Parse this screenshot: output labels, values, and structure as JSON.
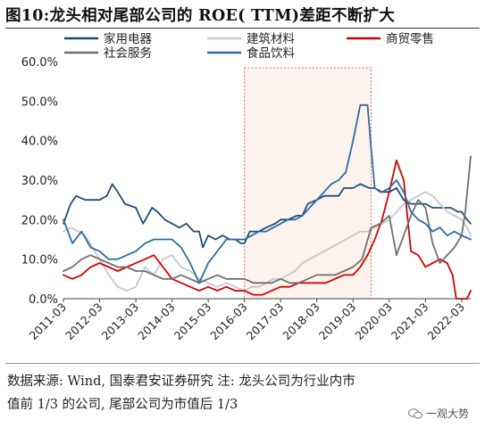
{
  "title": "图10:龙头相对尾部公司的 ROE( TTM)差距不断扩大",
  "note": {
    "line1": "数据来源: Wind, 国泰君安证券研究  注: 龙头公司为行业内市",
    "line2": "值前 1/3 的公司, 尾部公司为市值后 1/3"
  },
  "watermark": "一观大势",
  "chart_data": {
    "type": "line",
    "title": "图10:龙头相对尾部公司的 ROE( TTM)差距不断扩大",
    "xlabel": "",
    "ylabel": "",
    "x_ticks": [
      "2011-03",
      "2012-03",
      "2013-03",
      "2014-03",
      "2015-03",
      "2016-03",
      "2017-03",
      "2018-03",
      "2019-03",
      "2020-03",
      "2021-03",
      "2022-03"
    ],
    "x_range": [
      2011.0,
      2022.25
    ],
    "ylim": [
      0,
      60
    ],
    "y_ticks": [
      0,
      10,
      20,
      30,
      40,
      50,
      60
    ],
    "y_tick_labels": [
      "0.0%",
      "10.0%",
      "20.0%",
      "30.0%",
      "40.0%",
      "50.0%",
      "60.0%"
    ],
    "grid": false,
    "legend_position": "top",
    "highlight_region": {
      "x_start": 2016.0,
      "x_end": 2019.5,
      "color": "#fdf3ee",
      "border": "#e06666"
    },
    "series": [
      {
        "name": "家用电器",
        "color": "#1f4e79",
        "width": 1.8,
        "points": [
          [
            2011.0,
            19
          ],
          [
            2011.2,
            24
          ],
          [
            2011.35,
            26
          ],
          [
            2011.6,
            25
          ],
          [
            2012.0,
            25
          ],
          [
            2012.2,
            26
          ],
          [
            2012.35,
            29
          ],
          [
            2012.5,
            27
          ],
          [
            2012.7,
            24
          ],
          [
            2013.0,
            23
          ],
          [
            2013.2,
            19
          ],
          [
            2013.45,
            23
          ],
          [
            2013.6,
            22
          ],
          [
            2013.8,
            20
          ],
          [
            2014.0,
            19
          ],
          [
            2014.2,
            18
          ],
          [
            2014.4,
            19
          ],
          [
            2014.6,
            17
          ],
          [
            2014.75,
            17
          ],
          [
            2014.85,
            13
          ],
          [
            2015.0,
            16
          ],
          [
            2015.2,
            15
          ],
          [
            2015.4,
            16
          ],
          [
            2015.6,
            15
          ],
          [
            2015.75,
            15
          ],
          [
            2015.9,
            14
          ],
          [
            2016.0,
            14
          ],
          [
            2016.15,
            17
          ],
          [
            2016.4,
            17
          ],
          [
            2016.6,
            18
          ],
          [
            2016.85,
            19
          ],
          [
            2017.0,
            20
          ],
          [
            2017.2,
            20
          ],
          [
            2017.45,
            21
          ],
          [
            2017.6,
            21
          ],
          [
            2017.75,
            24
          ],
          [
            2018.0,
            25
          ],
          [
            2018.2,
            26
          ],
          [
            2018.45,
            26
          ],
          [
            2018.6,
            26
          ],
          [
            2018.75,
            28
          ],
          [
            2019.0,
            28
          ],
          [
            2019.2,
            29
          ],
          [
            2019.45,
            28
          ],
          [
            2019.6,
            28
          ],
          [
            2019.75,
            27
          ],
          [
            2020.0,
            27
          ],
          [
            2020.2,
            28
          ],
          [
            2020.4,
            25
          ],
          [
            2020.6,
            24
          ],
          [
            2020.8,
            24
          ],
          [
            2021.0,
            24
          ],
          [
            2021.2,
            23
          ],
          [
            2021.45,
            23
          ],
          [
            2021.7,
            23
          ],
          [
            2021.9,
            22
          ],
          [
            2022.0,
            22
          ],
          [
            2022.15,
            20
          ],
          [
            2022.25,
            19
          ]
        ]
      },
      {
        "name": "建筑材料",
        "color": "#c8c8c8",
        "width": 1.8,
        "points": [
          [
            2011.0,
            17
          ],
          [
            2011.2,
            18
          ],
          [
            2011.4,
            17
          ],
          [
            2011.6,
            16
          ],
          [
            2011.8,
            13
          ],
          [
            2012.0,
            10
          ],
          [
            2012.25,
            6
          ],
          [
            2012.5,
            3
          ],
          [
            2012.75,
            2
          ],
          [
            2013.0,
            3
          ],
          [
            2013.25,
            8
          ],
          [
            2013.5,
            6
          ],
          [
            2013.75,
            10
          ],
          [
            2014.0,
            11
          ],
          [
            2014.25,
            8
          ],
          [
            2014.5,
            7
          ],
          [
            2014.75,
            5
          ],
          [
            2015.0,
            4
          ],
          [
            2015.25,
            3
          ],
          [
            2015.5,
            4
          ],
          [
            2015.75,
            3
          ],
          [
            2016.0,
            2
          ],
          [
            2016.2,
            3
          ],
          [
            2016.4,
            3
          ],
          [
            2016.6,
            4
          ],
          [
            2016.8,
            5
          ],
          [
            2017.0,
            5
          ],
          [
            2017.2,
            6
          ],
          [
            2017.4,
            7
          ],
          [
            2017.6,
            9
          ],
          [
            2017.8,
            10
          ],
          [
            2018.0,
            11
          ],
          [
            2018.2,
            12
          ],
          [
            2018.4,
            13
          ],
          [
            2018.6,
            14
          ],
          [
            2018.8,
            15
          ],
          [
            2019.0,
            16
          ],
          [
            2019.2,
            17
          ],
          [
            2019.4,
            17
          ],
          [
            2019.6,
            18
          ],
          [
            2019.8,
            19
          ],
          [
            2020.0,
            20
          ],
          [
            2020.2,
            22
          ],
          [
            2020.4,
            24
          ],
          [
            2020.6,
            25
          ],
          [
            2020.8,
            26
          ],
          [
            2021.0,
            27
          ],
          [
            2021.2,
            26
          ],
          [
            2021.4,
            24
          ],
          [
            2021.6,
            22
          ],
          [
            2021.8,
            21
          ],
          [
            2022.0,
            20
          ],
          [
            2022.15,
            18
          ],
          [
            2022.25,
            16
          ]
        ]
      },
      {
        "name": "商贸零售",
        "color": "#d40000",
        "width": 1.8,
        "points": [
          [
            2011.0,
            6
          ],
          [
            2011.25,
            5
          ],
          [
            2011.5,
            6
          ],
          [
            2011.75,
            8
          ],
          [
            2012.0,
            9
          ],
          [
            2012.25,
            8
          ],
          [
            2012.5,
            7
          ],
          [
            2012.75,
            8
          ],
          [
            2013.0,
            9
          ],
          [
            2013.25,
            10
          ],
          [
            2013.5,
            11
          ],
          [
            2013.75,
            8
          ],
          [
            2014.0,
            5
          ],
          [
            2014.25,
            4
          ],
          [
            2014.5,
            3
          ],
          [
            2014.75,
            2
          ],
          [
            2015.0,
            3
          ],
          [
            2015.25,
            2
          ],
          [
            2015.5,
            3
          ],
          [
            2015.75,
            2
          ],
          [
            2016.0,
            2
          ],
          [
            2016.25,
            1
          ],
          [
            2016.5,
            1
          ],
          [
            2016.75,
            2
          ],
          [
            2017.0,
            3
          ],
          [
            2017.25,
            3
          ],
          [
            2017.5,
            4
          ],
          [
            2017.75,
            4
          ],
          [
            2018.0,
            4
          ],
          [
            2018.25,
            4
          ],
          [
            2018.5,
            5
          ],
          [
            2018.75,
            6
          ],
          [
            2019.0,
            6
          ],
          [
            2019.2,
            8
          ],
          [
            2019.4,
            11
          ],
          [
            2019.6,
            15
          ],
          [
            2019.8,
            20
          ],
          [
            2020.0,
            27
          ],
          [
            2020.2,
            35
          ],
          [
            2020.4,
            30
          ],
          [
            2020.6,
            12
          ],
          [
            2020.8,
            11
          ],
          [
            2021.0,
            8
          ],
          [
            2021.2,
            9
          ],
          [
            2021.4,
            10
          ],
          [
            2021.6,
            9
          ],
          [
            2021.75,
            6
          ],
          [
            2021.85,
            0
          ],
          [
            2022.0,
            0
          ],
          [
            2022.15,
            0
          ],
          [
            2022.25,
            2
          ]
        ]
      },
      {
        "name": "社会服务",
        "color": "#707070",
        "width": 1.8,
        "points": [
          [
            2011.0,
            7
          ],
          [
            2011.25,
            8
          ],
          [
            2011.5,
            10
          ],
          [
            2011.75,
            11
          ],
          [
            2012.0,
            10
          ],
          [
            2012.25,
            9
          ],
          [
            2012.5,
            8
          ],
          [
            2012.75,
            8
          ],
          [
            2013.0,
            7
          ],
          [
            2013.25,
            7
          ],
          [
            2013.5,
            6
          ],
          [
            2013.75,
            5
          ],
          [
            2014.0,
            5
          ],
          [
            2014.25,
            6
          ],
          [
            2014.5,
            5
          ],
          [
            2014.75,
            4
          ],
          [
            2015.0,
            5
          ],
          [
            2015.25,
            6
          ],
          [
            2015.5,
            5
          ],
          [
            2015.75,
            5
          ],
          [
            2016.0,
            5
          ],
          [
            2016.25,
            4
          ],
          [
            2016.5,
            4
          ],
          [
            2016.75,
            4
          ],
          [
            2017.0,
            5
          ],
          [
            2017.25,
            4
          ],
          [
            2017.5,
            4
          ],
          [
            2017.75,
            5
          ],
          [
            2018.0,
            6
          ],
          [
            2018.25,
            6
          ],
          [
            2018.5,
            6
          ],
          [
            2018.75,
            7
          ],
          [
            2019.0,
            8
          ],
          [
            2019.25,
            10
          ],
          [
            2019.5,
            18
          ],
          [
            2019.75,
            19
          ],
          [
            2020.0,
            21
          ],
          [
            2020.2,
            11
          ],
          [
            2020.4,
            16
          ],
          [
            2020.6,
            21
          ],
          [
            2020.8,
            25
          ],
          [
            2021.0,
            23
          ],
          [
            2021.2,
            14
          ],
          [
            2021.4,
            9
          ],
          [
            2021.6,
            11
          ],
          [
            2021.8,
            13
          ],
          [
            2022.0,
            16
          ],
          [
            2022.1,
            22
          ],
          [
            2022.25,
            36
          ]
        ]
      },
      {
        "name": "食品饮料",
        "color": "#2e6da4",
        "width": 1.8,
        "points": [
          [
            2011.0,
            20
          ],
          [
            2011.25,
            14
          ],
          [
            2011.5,
            17
          ],
          [
            2011.75,
            13
          ],
          [
            2012.0,
            12
          ],
          [
            2012.25,
            10
          ],
          [
            2012.5,
            10
          ],
          [
            2012.75,
            11
          ],
          [
            2013.0,
            12
          ],
          [
            2013.25,
            14
          ],
          [
            2013.5,
            15
          ],
          [
            2013.75,
            15
          ],
          [
            2014.0,
            15
          ],
          [
            2014.25,
            13
          ],
          [
            2014.5,
            9
          ],
          [
            2014.75,
            4
          ],
          [
            2015.0,
            9
          ],
          [
            2015.25,
            12
          ],
          [
            2015.5,
            15
          ],
          [
            2015.75,
            15
          ],
          [
            2016.0,
            15
          ],
          [
            2016.2,
            16
          ],
          [
            2016.4,
            17
          ],
          [
            2016.6,
            17
          ],
          [
            2016.8,
            18
          ],
          [
            2017.0,
            19
          ],
          [
            2017.2,
            20
          ],
          [
            2017.4,
            20
          ],
          [
            2017.6,
            21
          ],
          [
            2017.8,
            23
          ],
          [
            2018.0,
            25
          ],
          [
            2018.2,
            27
          ],
          [
            2018.4,
            29
          ],
          [
            2018.6,
            30
          ],
          [
            2018.8,
            32
          ],
          [
            2019.0,
            40
          ],
          [
            2019.2,
            49
          ],
          [
            2019.4,
            49
          ],
          [
            2019.5,
            38
          ],
          [
            2019.6,
            28
          ],
          [
            2019.8,
            27
          ],
          [
            2020.0,
            28
          ],
          [
            2020.2,
            30
          ],
          [
            2020.4,
            27
          ],
          [
            2020.6,
            22
          ],
          [
            2020.8,
            20
          ],
          [
            2021.0,
            19
          ],
          [
            2021.2,
            17
          ],
          [
            2021.4,
            18
          ],
          [
            2021.6,
            16
          ],
          [
            2021.8,
            17
          ],
          [
            2022.0,
            16
          ],
          [
            2022.25,
            15
          ]
        ]
      }
    ]
  }
}
